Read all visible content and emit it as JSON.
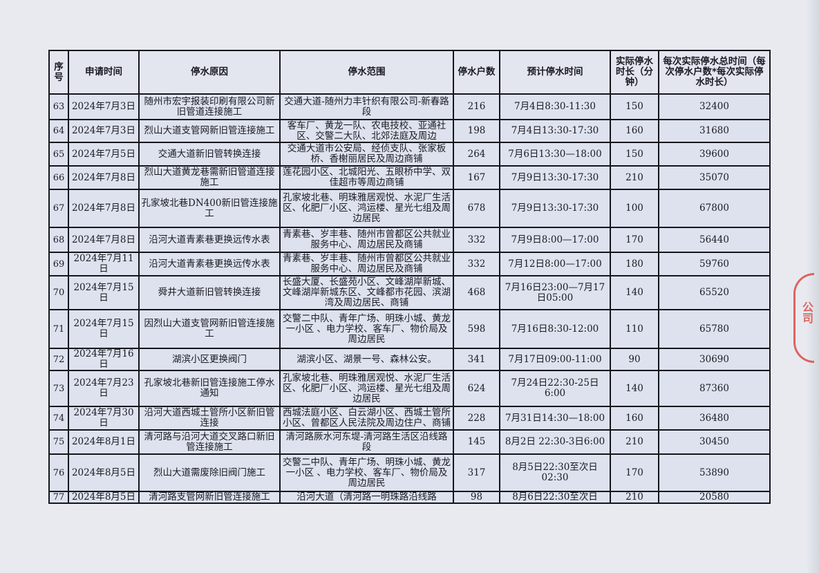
{
  "table": {
    "headers": [
      "序号",
      "申请时间",
      "停水原因",
      "停水范围",
      "停水户数",
      "预计停水时间",
      "实际停水时长（分钟）",
      "每次实际停水总时间（每次停水户数*每次实际停水时长）"
    ],
    "rows": [
      [
        "63",
        "2024年7月3日",
        "随州市宏宇报装印刷有限公司新旧管道连接施工",
        "交通大道-随州力丰针织有限公司-新春路段",
        "216",
        "7月4日8:30-11:30",
        "150",
        "32400"
      ],
      [
        "64",
        "2024年7月3日",
        "烈山大道支管网新旧管连接施工",
        "客车厂、黄龙一队、农电技校、亚通社区、交警二大队、北郊法庭及周边",
        "198",
        "7月4日13:30-17:30",
        "160",
        "31680"
      ],
      [
        "65",
        "2024年7月5日",
        "交通大道新旧管转换连接",
        "交通大道市公安局、经侦支队、张家板桥、香榭丽居民及周边商铺",
        "264",
        "7月6日13:30—18:00",
        "150",
        "39600"
      ],
      [
        "66",
        "2024年7月8日",
        "烈山大道黄龙巷需新旧管道连接施工",
        "莲花园小区、北城阳光、五眼桥中学、双佳超市等周边商铺",
        "167",
        "7月9日13:30-17:30",
        "210",
        "35070"
      ],
      [
        "67",
        "2024年7月8日",
        "孔家坡北巷DN400新旧管连接施工",
        "孔家坡北巷、明珠雅居观悦、水泥厂生活区、化肥厂小区、鸿运楼、星光七组及周边居民",
        "678",
        "7月9日13:30-17:30",
        "100",
        "67800"
      ],
      [
        "68",
        "2024年7月8日",
        "沿河大道青素巷更换远传水表",
        "青素巷、岁丰巷、随州市曾都区公共就业服务中心、周边居民及商铺",
        "332",
        "7月9日8:00—17:00",
        "170",
        "56440"
      ],
      [
        "69",
        "2024年7月11日",
        "沿河大道青素巷更换远传水表",
        "青素巷、岁丰巷、随州市曾都区公共就业服务中心、周边居民及商铺",
        "332",
        "7月12日8:00—17:00",
        "180",
        "59760"
      ],
      [
        "70",
        "2024年7月15日",
        "舜井大道新旧管转换连接",
        "长盛大厦、长盛苑小区、文峰湖岸新城、文峰湖岸新城东区、文峰都市花园、滨湖湾及周边居民、商铺",
        "468",
        "7月16日23:00—7月17日05:00",
        "140",
        "65520"
      ],
      [
        "71",
        "2024年7月15日",
        "因烈山大道支管网新旧管连接施工",
        "交警二中队、青年广场、明珠小城、黄龙一小区 、电力学校、客车厂、物价局及周边居民",
        "598",
        "7月16日8:30-12:00",
        "110",
        "65780"
      ],
      [
        "72",
        "2024年7月16日",
        "湖滨小区更换阀门",
        "湖滨小区、湖景一号、森林公安。",
        "341",
        "7月17日09:00-11:00",
        "90",
        "30690"
      ],
      [
        "73",
        "2024年7月23日",
        "孔家坡北巷新旧管连接施工停水通知",
        "孔家坡北巷、明珠雅居观悦、水泥厂生活区、化肥厂小区、鸿运楼、星光七组及周边居民",
        "624",
        "7月24日22:30-25日6:00",
        "140",
        "87360"
      ],
      [
        "74",
        "2024年7月30日",
        "沿河大道西城土管所小区新旧管连接",
        "西城法庭小区、白云湖小区、西城土管所小区、曾都区人民法院及周边住户、商铺",
        "228",
        "7月31日14:30—18:00",
        "160",
        "36480"
      ],
      [
        "75",
        "2024年8月1日",
        "清河路与沿河大道交叉路口新旧管连接施工",
        "清河路厥水河东堤-清河路生活区沿线路段",
        "145",
        "8月2日  22:30-3日6:00",
        "210",
        "30450"
      ],
      [
        "76",
        "2024年8月5日",
        "烈山大道需废除旧阀门施工",
        "交警二中队、青年广场、明珠小城、黄龙一小区 、电力学校、客车厂、物价局及周边居民",
        "317",
        "8月5日22:30至次日02:30",
        "170",
        "53890"
      ],
      [
        "77",
        "2024年8月5日",
        "清河路支管网新旧管连接施工",
        "沿河大道（清河路一明珠路沿线路",
        "98",
        "8月6日22:30至次日",
        "210",
        "20580"
      ]
    ]
  },
  "stamp": {
    "text": "公司",
    "color": "#d8392f"
  }
}
